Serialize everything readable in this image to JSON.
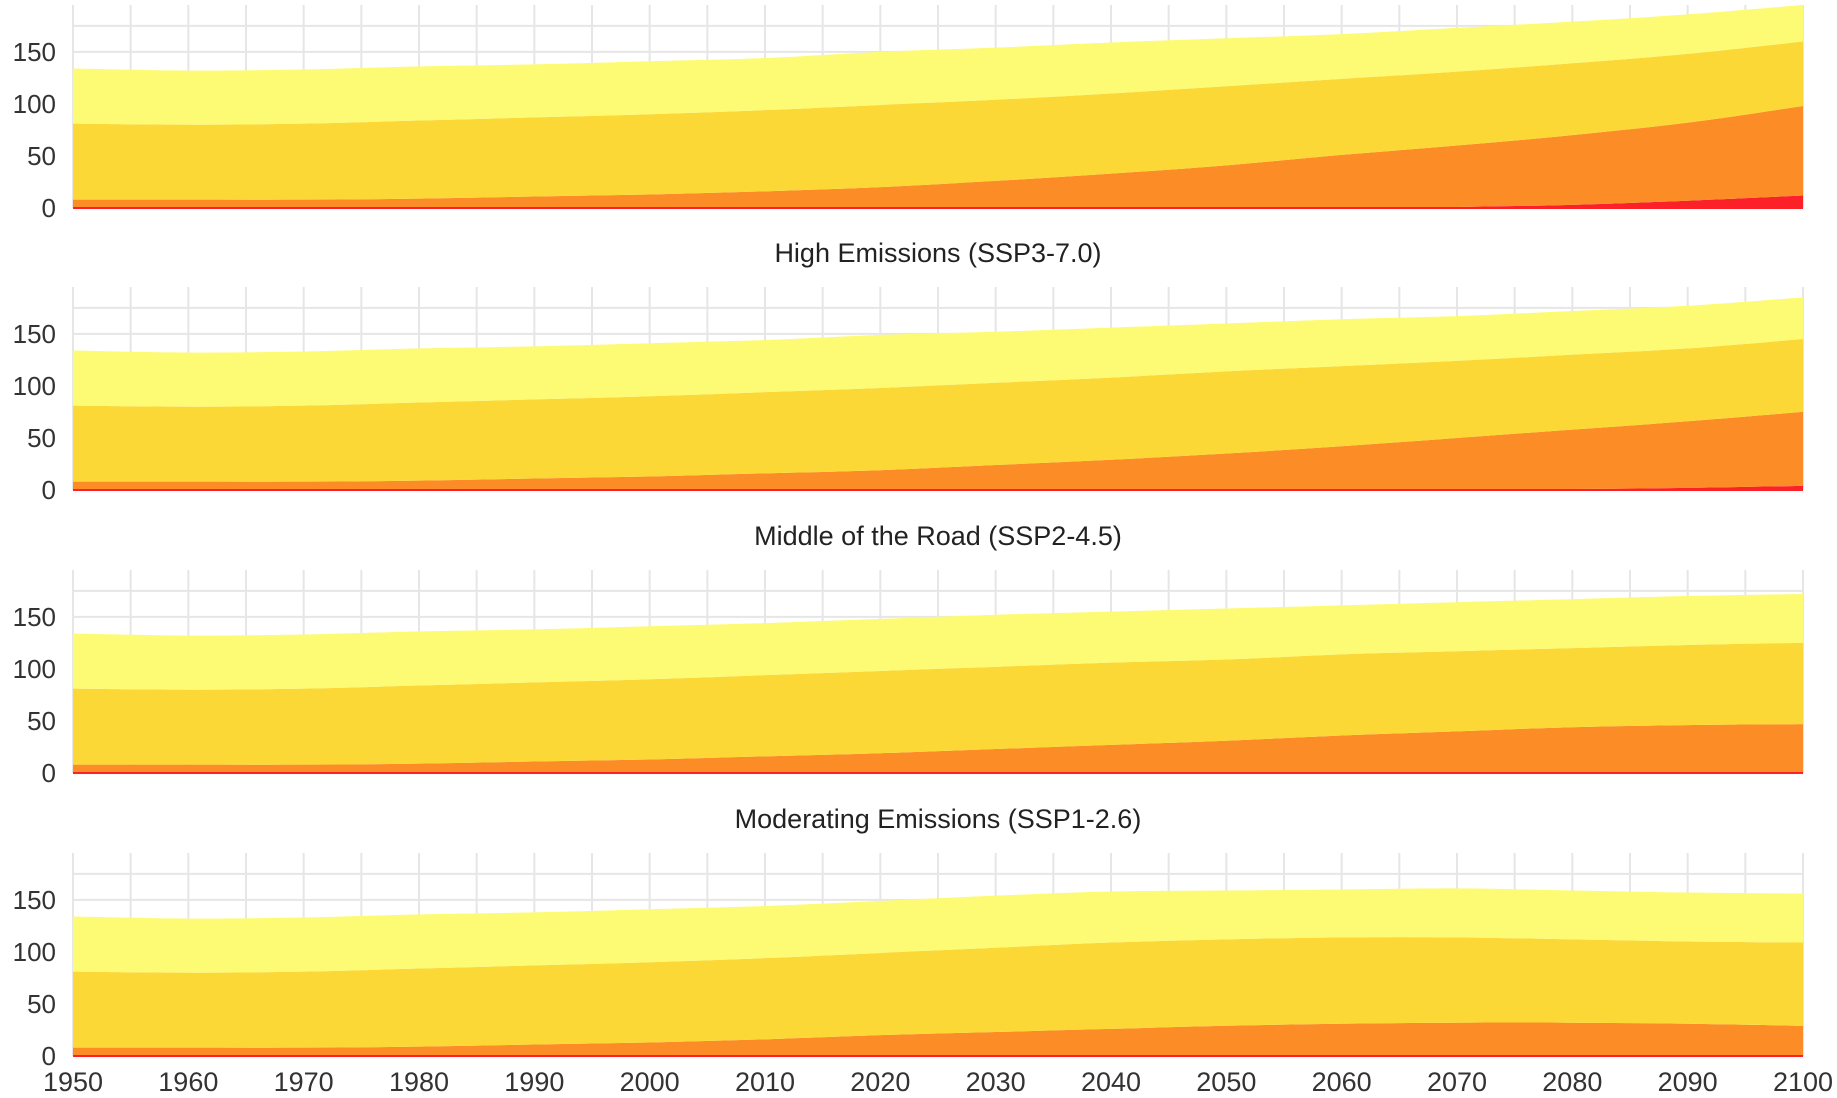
{
  "chart_data": {
    "type": "area",
    "stacked": true,
    "x_ticks": [
      1950,
      1960,
      1970,
      1980,
      1990,
      2000,
      2010,
      2020,
      2030,
      2040,
      2050,
      2060,
      2070,
      2080,
      2090,
      2100
    ],
    "y_ticks": [
      0,
      50,
      100,
      150
    ],
    "ylim": [
      0,
      195
    ],
    "xlim": [
      1950,
      2100
    ],
    "grid": true,
    "legend": "none",
    "layer_colors": [
      "#fc2028",
      "#fb8c26",
      "#fcd837",
      "#fdfa73"
    ],
    "panels": [
      {
        "title": "",
        "x": [
          1950,
          1960,
          1970,
          1980,
          1990,
          2000,
          2010,
          2020,
          2030,
          2040,
          2050,
          2060,
          2070,
          2080,
          2090,
          2100
        ],
        "series": [
          {
            "values": [
              0,
              0,
              0,
              0,
              0,
              0,
              0,
              0,
              0,
              0,
              0,
              0,
              1,
              3,
              7,
              12
            ]
          },
          {
            "values": [
              8,
              8,
              8,
              9,
              11,
              13,
              16,
              20,
              26,
              33,
              41,
              51,
              59,
              67,
              75,
              86
            ]
          },
          {
            "values": [
              73,
              72,
              73,
              75,
              76,
              77,
              78,
              79,
              78,
              77,
              76,
              73,
              71,
              69,
              66,
              62
            ]
          },
          {
            "values": [
              53,
              52,
              52,
              52,
              51,
              51,
              50,
              51,
              50,
              49,
              46,
              43,
              42,
              40,
              38,
              35
            ]
          }
        ]
      },
      {
        "title": "High Emissions (SSP3-7.0)",
        "x": [
          1950,
          1960,
          1970,
          1980,
          1990,
          2000,
          2010,
          2020,
          2030,
          2040,
          2050,
          2060,
          2070,
          2080,
          2090,
          2100
        ],
        "series": [
          {
            "values": [
              0,
              0,
              0,
              0,
              0,
              0,
              0,
              0,
              0,
              0,
              0,
              0,
              0,
              1,
              2,
              4
            ]
          },
          {
            "values": [
              8,
              8,
              8,
              9,
              11,
              13,
              16,
              19,
              24,
              29,
              35,
              42,
              50,
              57,
              64,
              71
            ]
          },
          {
            "values": [
              73,
              72,
              73,
              75,
              76,
              77,
              78,
              79,
              79,
              79,
              79,
              77,
              74,
              72,
              70,
              70
            ]
          },
          {
            "values": [
              53,
              52,
              52,
              52,
              51,
              51,
              50,
              51,
              49,
              48,
              46,
              45,
              43,
              42,
              41,
              40
            ]
          }
        ]
      },
      {
        "title": "Middle of the Road (SSP2-4.5)",
        "x": [
          1950,
          1960,
          1970,
          1980,
          1990,
          2000,
          2010,
          2020,
          2030,
          2040,
          2050,
          2060,
          2070,
          2080,
          2090,
          2100
        ],
        "series": [
          {
            "values": [
              0,
              0,
              0,
              0,
              0,
              0,
              0,
              0,
              0,
              0,
              0,
              0,
              0,
              0,
              0,
              0
            ]
          },
          {
            "values": [
              8,
              8,
              8,
              9,
              11,
              13,
              16,
              19,
              23,
              27,
              31,
              36,
              40,
              44,
              46,
              47
            ]
          },
          {
            "values": [
              73,
              72,
              73,
              75,
              76,
              77,
              78,
              79,
              79,
              79,
              78,
              78,
              77,
              76,
              77,
              78
            ]
          },
          {
            "values": [
              53,
              52,
              52,
              52,
              51,
              51,
              50,
              50,
              50,
              49,
              49,
              47,
              47,
              47,
              47,
              47
            ]
          }
        ]
      },
      {
        "title": "Moderating Emissions (SSP1-2.6)",
        "x": [
          1950,
          1960,
          1970,
          1980,
          1990,
          2000,
          2010,
          2020,
          2030,
          2040,
          2050,
          2060,
          2070,
          2080,
          2090,
          2100
        ],
        "series": [
          {
            "values": [
              0,
              0,
              0,
              0,
              0,
              0,
              0,
              0,
              0,
              0,
              0,
              0,
              0,
              0,
              0,
              0
            ]
          },
          {
            "values": [
              8,
              8,
              8,
              9,
              11,
              13,
              16,
              20,
              23,
              26,
              29,
              31,
              32,
              32,
              31,
              29
            ]
          },
          {
            "values": [
              73,
              72,
              73,
              75,
              76,
              77,
              78,
              79,
              81,
              83,
              83,
              83,
              82,
              80,
              79,
              80
            ]
          },
          {
            "values": [
              53,
              52,
              52,
              52,
              51,
              51,
              50,
              50,
              50,
              49,
              47,
              46,
              47,
              47,
              47,
              47
            ]
          }
        ]
      }
    ]
  }
}
